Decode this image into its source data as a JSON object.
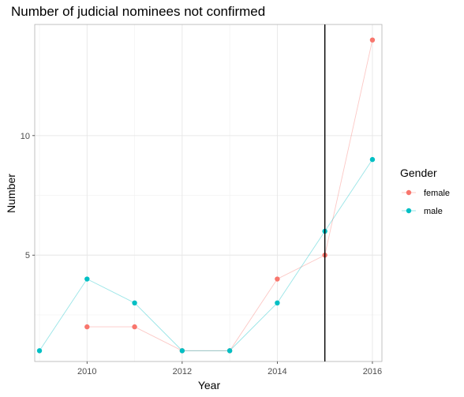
{
  "chart_data": {
    "type": "line",
    "title": "Number of judicial nominees not confirmed",
    "xlabel": "Year",
    "ylabel": "Number",
    "xlim": [
      2008.9,
      2016.2
    ],
    "ylim": [
      0.55,
      14.65
    ],
    "x_ticks": [
      2010,
      2012,
      2014,
      2016
    ],
    "y_ticks": [
      5,
      10
    ],
    "grid": true,
    "vertical_line": {
      "x": 2015,
      "color": "#000000"
    },
    "legend": {
      "title": "Gender",
      "position": "right"
    },
    "series": [
      {
        "name": "female",
        "color": "#F8766D",
        "points": [
          {
            "x": 2010,
            "y": 2
          },
          {
            "x": 2011,
            "y": 2
          },
          {
            "x": 2012,
            "y": 1
          },
          {
            "x": 2013,
            "y": 1
          },
          {
            "x": 2014,
            "y": 4
          },
          {
            "x": 2015,
            "y": 5
          },
          {
            "x": 2016,
            "y": 14
          }
        ]
      },
      {
        "name": "male",
        "color": "#00BFC4",
        "points": [
          {
            "x": 2009,
            "y": 1
          },
          {
            "x": 2010,
            "y": 4
          },
          {
            "x": 2011,
            "y": 3
          },
          {
            "x": 2012,
            "y": 1
          },
          {
            "x": 2013,
            "y": 1
          },
          {
            "x": 2014,
            "y": 3
          },
          {
            "x": 2015,
            "y": 6
          },
          {
            "x": 2016,
            "y": 9
          }
        ]
      }
    ]
  }
}
